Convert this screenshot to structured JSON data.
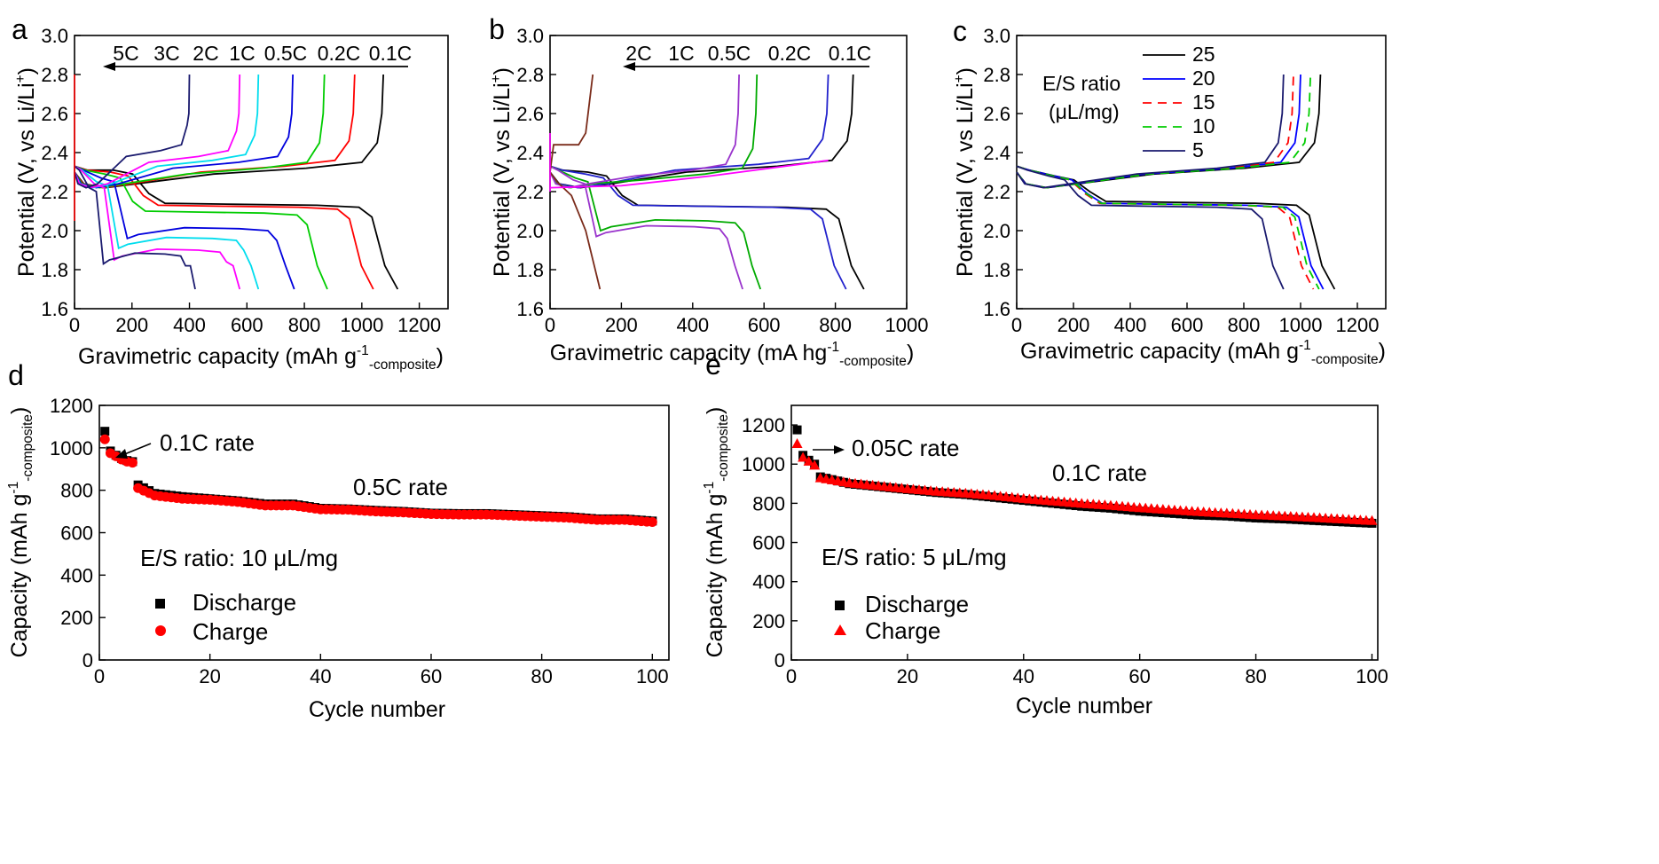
{
  "chart_data": [
    {
      "panel": "a",
      "type": "line",
      "xlabel_main": "Gravimetric capacity (mAh g",
      "xlabel_sup": "-1",
      "xlabel_sub": "-composite",
      "xlabel_close": ")",
      "ylabel_main": "Potential (V, vs Li/Li",
      "ylabel_sup": "+",
      "ylabel_close": ")",
      "xlim": [
        0,
        1300
      ],
      "ylim": [
        1.6,
        3.0
      ],
      "xticks": [
        0,
        200,
        400,
        600,
        800,
        1000,
        1200
      ],
      "yticks": [
        1.6,
        1.8,
        2.0,
        2.2,
        2.4,
        2.6,
        2.8,
        3.0
      ],
      "annotations": [
        "5C",
        "3C",
        "2C",
        "1C",
        "0.5C",
        "0.2C",
        "0.1C"
      ],
      "series": [
        {
          "label": "0.1C",
          "color": "#000000",
          "discharge_capacity": 1125,
          "charge_capacity": 1075,
          "upper_plateau": 2.29,
          "lower_plateau": 2.13,
          "charge_plateau": 2.33
        },
        {
          "label": "0.2C",
          "color": "#ff0000",
          "discharge_capacity": 1040,
          "charge_capacity": 975,
          "upper_plateau": 2.28,
          "lower_plateau": 2.12,
          "charge_plateau": 2.34
        },
        {
          "label": "0.5C",
          "color": "#00cc00",
          "discharge_capacity": 880,
          "charge_capacity": 870,
          "upper_plateau": 2.27,
          "lower_plateau": 2.09,
          "charge_plateau": 2.33
        },
        {
          "label": "1C",
          "color": "#0000dd",
          "discharge_capacity": 765,
          "charge_capacity": 760,
          "upper_plateau": 2.25,
          "lower_plateau": 2.01,
          "charge_plateau": 2.36
        },
        {
          "label": "2C",
          "color": "#00ddee",
          "discharge_capacity": 640,
          "charge_capacity": 640,
          "upper_plateau": 2.23,
          "lower_plateau": 1.96,
          "charge_plateau": 2.37
        },
        {
          "label": "3C",
          "color": "#ff00ff",
          "discharge_capacity": 575,
          "charge_capacity": 575,
          "upper_plateau": 2.22,
          "lower_plateau": 1.9,
          "charge_plateau": 2.39
        },
        {
          "label": "5C",
          "color": "#1a1a6e",
          "discharge_capacity": 420,
          "charge_capacity": 400,
          "upper_plateau": 2.2,
          "lower_plateau": 1.88,
          "charge_plateau": 2.42
        }
      ]
    },
    {
      "panel": "b",
      "type": "line",
      "xlabel_main": "Gravimetric capacity (mA hg",
      "xlabel_sup": "-1",
      "xlabel_sub": "-composite",
      "xlabel_close": ")",
      "ylabel_main": "Potential (V, vs Li/Li",
      "ylabel_sup": "+",
      "ylabel_close": ")",
      "xlim": [
        0,
        1000
      ],
      "ylim": [
        1.6,
        3.0
      ],
      "xticks": [
        0,
        200,
        400,
        600,
        800,
        1000
      ],
      "yticks": [
        1.6,
        1.8,
        2.0,
        2.2,
        2.4,
        2.6,
        2.8,
        3.0
      ],
      "annotations": [
        "2C",
        "1C",
        "0.5C",
        "0.2C",
        "0.1C"
      ],
      "series": [
        {
          "label": "0.1C",
          "color": "#000000",
          "discharge_capacity": 880,
          "charge_capacity": 850
        },
        {
          "label": "0.2C",
          "color": "#2222cc",
          "discharge_capacity": 830,
          "charge_capacity": 780
        },
        {
          "label": "0.5C",
          "color": "#00aa00",
          "discharge_capacity": 590,
          "charge_capacity": 580
        },
        {
          "label": "1C",
          "color": "#9933cc",
          "discharge_capacity": 540,
          "charge_capacity": 530
        },
        {
          "label": "2C",
          "color": "#7a2b1a",
          "discharge_capacity": 140,
          "charge_capacity": 120
        }
      ]
    },
    {
      "panel": "c",
      "type": "line",
      "xlabel_main": "Gravimetric capacity (mAh g",
      "xlabel_sup": "-1",
      "xlabel_sub": "-composite",
      "xlabel_close": ")",
      "ylabel_main": "Potential (V, vs Li/Li",
      "ylabel_sup": "+",
      "ylabel_close": ")",
      "xlim": [
        0,
        1300
      ],
      "ylim": [
        1.6,
        3.0
      ],
      "xticks": [
        0,
        200,
        400,
        600,
        800,
        1000,
        1200
      ],
      "yticks": [
        1.6,
        1.8,
        2.0,
        2.2,
        2.4,
        2.6,
        2.8,
        3.0
      ],
      "legend_title_1": "E/S ratio",
      "legend_title_2": "(μL/mg)",
      "legend_placement": "top-right",
      "series": [
        {
          "name": "25",
          "color": "#000000",
          "dash": "",
          "discharge_capacity": 1120,
          "charge_capacity": 1070
        },
        {
          "name": "20",
          "color": "#0000ff",
          "dash": "",
          "discharge_capacity": 1080,
          "charge_capacity": 1000
        },
        {
          "name": "15",
          "color": "#ff0000",
          "dash": "10,7",
          "discharge_capacity": 1045,
          "charge_capacity": 975
        },
        {
          "name": "10",
          "color": "#00cc00",
          "dash": "10,7",
          "discharge_capacity": 1065,
          "charge_capacity": 1035
        },
        {
          "name": "5",
          "color": "#1a1a6e",
          "dash": "",
          "discharge_capacity": 940,
          "charge_capacity": 940
        }
      ]
    },
    {
      "panel": "d",
      "type": "scatter",
      "xlabel": "Cycle number",
      "ylabel_main": "Capacity (mAh g",
      "ylabel_sup": "-1",
      "ylabel_sub": "-composite",
      "ylabel_close": ")",
      "xlim": [
        0,
        103
      ],
      "ylim": [
        0,
        1200
      ],
      "xticks": [
        0,
        20,
        40,
        60,
        80,
        100
      ],
      "yticks": [
        0,
        200,
        400,
        600,
        800,
        1000,
        1200
      ],
      "annotation_1": "0.1C rate",
      "annotation_2": "0.5C rate",
      "ratio_prefix": "E/S ratio: 10 ",
      "ratio_unit": "μL/mg",
      "series": [
        {
          "name": "Discharge",
          "marker": "square",
          "color": "#000000"
        },
        {
          "name": "Charge",
          "marker": "circle",
          "color": "#ff0000"
        }
      ],
      "x": [
        1,
        2,
        3,
        4,
        5,
        6,
        7,
        10,
        15,
        20,
        25,
        30,
        35,
        40,
        45,
        50,
        55,
        60,
        65,
        70,
        75,
        80,
        85,
        90,
        95,
        100
      ],
      "discharge": [
        1078,
        985,
        965,
        950,
        940,
        935,
        825,
        785,
        770,
        760,
        750,
        735,
        735,
        715,
        712,
        705,
        700,
        692,
        690,
        690,
        685,
        680,
        675,
        665,
        665,
        655
      ],
      "charge": [
        1040,
        975,
        960,
        945,
        935,
        930,
        810,
        775,
        760,
        755,
        745,
        728,
        728,
        710,
        708,
        700,
        695,
        688,
        685,
        685,
        680,
        675,
        670,
        660,
        660,
        650
      ]
    },
    {
      "panel": "e",
      "type": "scatter",
      "xlabel": "Cycle number",
      "ylabel_main": "Capacity (mAh g",
      "ylabel_sup": "-1",
      "ylabel_sub": "-composite",
      "ylabel_close": ")",
      "xlim": [
        0,
        101
      ],
      "ylim": [
        0,
        1300
      ],
      "xticks": [
        0,
        20,
        40,
        60,
        80,
        100
      ],
      "yticks": [
        0,
        200,
        400,
        600,
        800,
        1000,
        1200
      ],
      "annotation_1": "0.05C rate",
      "annotation_2": "0.1C rate",
      "ratio_prefix": "E/S ratio: 5 ",
      "ratio_unit": "μL/mg",
      "series": [
        {
          "name": "Discharge",
          "marker": "square",
          "color": "#000000"
        },
        {
          "name": "Charge",
          "marker": "triangle",
          "color": "#ff0000"
        }
      ],
      "x": [
        1,
        2,
        3,
        4,
        5,
        10,
        15,
        20,
        25,
        30,
        35,
        40,
        45,
        50,
        55,
        60,
        65,
        70,
        75,
        80,
        85,
        90,
        95,
        100
      ],
      "discharge": [
        1175,
        1045,
        1020,
        1000,
        935,
        900,
        885,
        870,
        855,
        845,
        830,
        815,
        800,
        785,
        775,
        760,
        750,
        740,
        735,
        725,
        720,
        712,
        705,
        698
      ],
      "charge": [
        1105,
        1035,
        1015,
        995,
        930,
        905,
        890,
        875,
        862,
        852,
        840,
        825,
        812,
        800,
        790,
        778,
        768,
        758,
        750,
        742,
        735,
        728,
        720,
        712
      ]
    }
  ]
}
